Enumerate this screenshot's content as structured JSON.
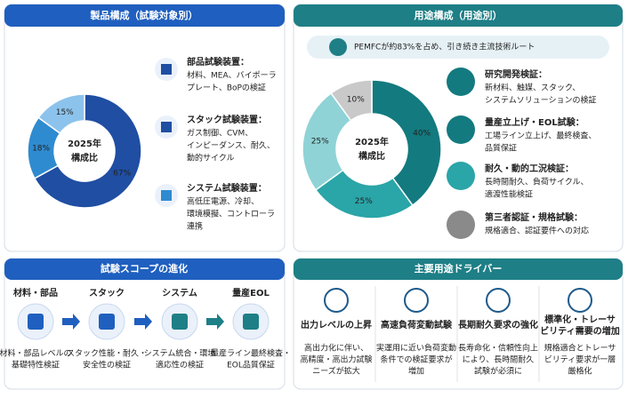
{
  "chart_data": [
    {
      "type": "pie",
      "title": "製品構成（試験対象別）",
      "center_label": [
        "2025年",
        "構成比"
      ],
      "values": [
        67,
        18,
        15
      ],
      "value_labels": [
        "67%",
        "18%",
        "15%"
      ],
      "colors": [
        "#1f4ea3",
        "#2f8bd0",
        "#8cc3ec"
      ],
      "items": [
        {
          "title": "部品試験装置：",
          "desc": [
            "材料、MEA、バイポーラ",
            "プレート、BoPの検証"
          ]
        },
        {
          "title": "スタック試験装置：",
          "desc": [
            "ガス制御、CVM、",
            "インピーダンス、耐久、",
            "動的サイクル"
          ]
        },
        {
          "title": "システム試験装置：",
          "desc": [
            "高低圧電源、冷却、",
            "環境模擬、コントローラ",
            "連携"
          ]
        }
      ]
    },
    {
      "type": "pie",
      "title": "用途構成（用途別）",
      "banner": "PEMFCが約83%を占め、引き続き主流技術ルート",
      "center_label": [
        "2025年",
        "構成比"
      ],
      "values": [
        40,
        25,
        25,
        10
      ],
      "value_labels": [
        "40%",
        "25%",
        "25%",
        "10%"
      ],
      "colors": [
        "#137a7f",
        "#2aa5a8",
        "#8fd3d6",
        "#c9c9c9"
      ],
      "items": [
        {
          "title": "研究開発検証：",
          "desc": [
            "新材料、触媒、スタック、",
            "システムソリューションの検証"
          ]
        },
        {
          "title": "量産立上げ・EOL試験：",
          "desc": [
            "工場ライン立上げ、最終検査、",
            "品質保証"
          ]
        },
        {
          "title": "耐久・動的工況検証：",
          "desc": [
            "長時間耐久、負荷サイクル、",
            "適渡性能検証"
          ]
        },
        {
          "title": "第三者認証・規格試験：",
          "desc": [
            "規格適合、認証要件への対応"
          ]
        }
      ]
    }
  ],
  "scope": {
    "title": "試験スコープの進化",
    "stages": [
      {
        "title": "材料・部品",
        "desc": [
          "材料・部品レベルの",
          "基礎特性検証"
        ]
      },
      {
        "title": "スタック",
        "desc": [
          "スタック性能・耐久・",
          "安全性の検証"
        ]
      },
      {
        "title": "システム",
        "desc": [
          "システム統合・環境",
          "適応性の検証"
        ]
      },
      {
        "title": "量産EOL",
        "desc": [
          "量産ライン最終検査・",
          "EOL品質保証"
        ]
      }
    ]
  },
  "drivers": {
    "title": "主要用途ドライバー",
    "items": [
      {
        "title": [
          "出力レベルの上昇"
        ],
        "desc": [
          "高出力化に伴い、",
          "高精度・高出力試験",
          "ニーズが拡大"
        ]
      },
      {
        "title": [
          "高速負荷変動試験"
        ],
        "desc": [
          "実運用に近い負荷変動",
          "条件での検証要求が",
          "増加"
        ]
      },
      {
        "title": [
          "長期耐久要求の強化"
        ],
        "desc": [
          "長寿命化・信頼性向上",
          "により、長時間耐久",
          "試験が必須に"
        ]
      },
      {
        "title": [
          "標準化・トレーサ",
          "ビリティ需要の増加"
        ],
        "desc": [
          "規格適合とトレーサ",
          "ビリティ要求が一層",
          "厳格化"
        ]
      }
    ]
  }
}
